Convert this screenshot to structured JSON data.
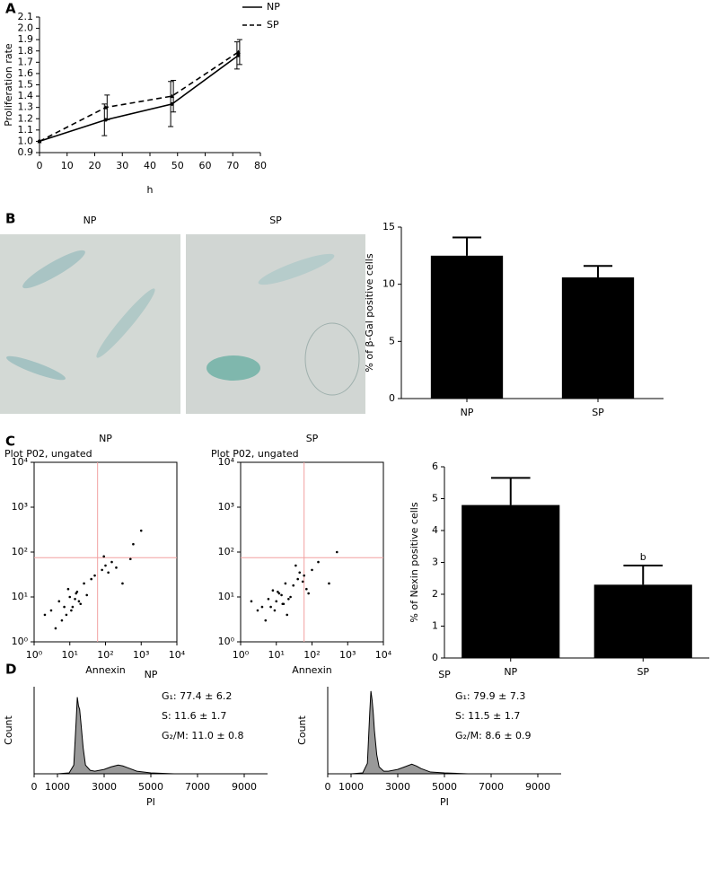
{
  "chart_data": [
    {
      "type": "line",
      "panel": "A",
      "ylabel": "Proliferation rate",
      "xlabel": "h",
      "legend": "top-right",
      "x": [
        0,
        24,
        48,
        72
      ],
      "series": [
        {
          "name": "NP",
          "color": "#000000",
          "line_style": "solid",
          "marker": "circle",
          "values": [
            1.0,
            1.19,
            1.33,
            1.76
          ],
          "errors": [
            null,
            0.14,
            0.2,
            0.12
          ]
        },
        {
          "name": "SP",
          "color": "#000000",
          "line_style": "dashed",
          "marker": "triangle",
          "values": [
            1.0,
            1.3,
            1.4,
            1.79
          ],
          "errors": [
            null,
            0.11,
            0.14,
            0.11
          ]
        }
      ],
      "xlim": [
        0,
        80
      ],
      "xticks": [
        0,
        10,
        20,
        30,
        40,
        50,
        60,
        70,
        80
      ],
      "ylim": [
        0.9,
        2.1
      ],
      "yticks": [
        0.9,
        {
          "value": 1.0,
          "label": "1.0"
        },
        1.1,
        1.2,
        1.3,
        1.4,
        1.5,
        1.6,
        1.7,
        1.8,
        1.9,
        {
          "value": 2.0,
          "label": "2.0"
        },
        2.1
      ]
    },
    {
      "type": "bar",
      "panel": "B",
      "image_labels": [
        "NP",
        "SP"
      ],
      "ylabel": "% of β-Gal positive cells",
      "categories": [
        "NP",
        "SP"
      ],
      "values": [
        12.5,
        10.6
      ],
      "errors": [
        1.6,
        1.0
      ],
      "color": "#000000",
      "ylim": [
        0,
        15
      ],
      "yticks": [
        0,
        5,
        10,
        15
      ]
    },
    {
      "type": "scatter",
      "panel": "C",
      "title": "NP",
      "subtitle": "Plot P02, ungated",
      "xlabel": "Annexin",
      "log_scale": true,
      "xlim": [
        1,
        10000
      ],
      "ylim": [
        1,
        10000
      ],
      "xticks": [
        {
          "value": 1,
          "label": "10⁰"
        },
        {
          "value": 10,
          "label": "10¹"
        },
        {
          "value": 100,
          "label": "10²"
        },
        {
          "value": 1000,
          "label": "10³"
        },
        {
          "value": 10000,
          "label": "10⁴"
        }
      ],
      "yticks": [
        {
          "value": 1,
          "label": "10⁰"
        },
        {
          "value": 10,
          "label": "10¹"
        },
        {
          "value": 100,
          "label": "10²"
        },
        {
          "value": 1000,
          "label": "10³"
        },
        {
          "value": 10000,
          "label": "10⁴"
        }
      ],
      "gate": {
        "x": 60,
        "y": 75
      },
      "gate_color": "#f2a0a0",
      "color": "#000000",
      "x": [
        3,
        5,
        8,
        10,
        12,
        15,
        20,
        6,
        9,
        14,
        25,
        30,
        4,
        7,
        11,
        18,
        40,
        50,
        80,
        100,
        120,
        150,
        200,
        90,
        300,
        600,
        1000,
        500,
        2,
        16
      ],
      "y": [
        5,
        8,
        4,
        10,
        6,
        12,
        7,
        3,
        15,
        9,
        20,
        11,
        2,
        6,
        5,
        8,
        25,
        30,
        40,
        50,
        35,
        60,
        45,
        80,
        20,
        150,
        300,
        70,
        4,
        13
      ]
    },
    {
      "type": "scatter",
      "title": "SP",
      "subtitle": "Plot P02, ungated",
      "xlabel": "Annexin",
      "log_scale": true,
      "xlim": [
        1,
        10000
      ],
      "ylim": [
        1,
        10000
      ],
      "xticks": [
        {
          "value": 1,
          "label": "10⁰"
        },
        {
          "value": 10,
          "label": "10¹"
        },
        {
          "value": 100,
          "label": "10²"
        },
        {
          "value": 1000,
          "label": "10³"
        },
        {
          "value": 10000,
          "label": "10⁴"
        }
      ],
      "yticks": [
        {
          "value": 1,
          "label": "10⁰"
        },
        {
          "value": 10,
          "label": "10¹"
        },
        {
          "value": 100,
          "label": "10²"
        },
        {
          "value": 1000,
          "label": "10³"
        },
        {
          "value": 10000,
          "label": "10⁴"
        }
      ],
      "gate": {
        "x": 60,
        "y": 75
      },
      "gate_color": "#f2a0a0",
      "color": "#000000",
      "x": [
        4,
        6,
        9,
        12,
        15,
        20,
        8,
        10,
        25,
        5,
        7,
        30,
        3,
        14,
        18,
        40,
        60,
        70,
        100,
        150,
        300,
        500,
        45,
        35,
        2,
        11,
        16,
        22,
        80,
        55
      ],
      "y": [
        6,
        9,
        5,
        12,
        7,
        4,
        14,
        8,
        10,
        3,
        6,
        18,
        5,
        11,
        20,
        25,
        30,
        15,
        40,
        60,
        20,
        100,
        35,
        50,
        8,
        13,
        7,
        9,
        12,
        22
      ]
    },
    {
      "type": "bar",
      "ylabel": "% of Nexin positive cells",
      "categories": [
        "NP",
        "SP"
      ],
      "values": [
        4.8,
        2.3
      ],
      "errors": [
        0.85,
        0.6
      ],
      "value_notes": [
        null,
        "b"
      ],
      "color": "#000000",
      "ylim": [
        0,
        6
      ],
      "yticks": [
        0,
        1,
        2,
        3,
        4,
        5,
        6
      ]
    },
    {
      "type": "area",
      "panel": "D",
      "title": "NP",
      "ylabel": "Count",
      "xlabel": "PI",
      "annotations": [
        "G₁: 77.4 ± 6.2",
        "S: 11.6 ± 1.7",
        "G₂/M: 11.0 ± 0.8"
      ],
      "xlim": [
        0,
        10000
      ],
      "ylim": [
        0,
        100
      ],
      "xticks": [
        0,
        1000,
        3000,
        5000,
        7000,
        9000
      ],
      "color": "#999999",
      "x": [
        0,
        1000,
        1500,
        1700,
        1800,
        1850,
        1900,
        1950,
        2000,
        2100,
        2200,
        2400,
        2600,
        3000,
        3300,
        3600,
        3800,
        4000,
        4400,
        5000,
        6000,
        10000
      ],
      "values": [
        0,
        0,
        1,
        10,
        60,
        88,
        78,
        74,
        60,
        30,
        10,
        4,
        3,
        5,
        8,
        10,
        9,
        7,
        3,
        1,
        0,
        0
      ]
    },
    {
      "type": "area",
      "title": "SP",
      "ylabel": "Count",
      "xlabel": "PI",
      "annotations": [
        "G₁: 79.9 ± 7.3",
        "S: 11.5 ± 1.7",
        "G₂/M: 8.6 ± 0.9"
      ],
      "xlim": [
        0,
        10000
      ],
      "ylim": [
        0,
        100
      ],
      "xticks": [
        0,
        1000,
        3000,
        5000,
        7000,
        9000
      ],
      "color": "#999999",
      "x": [
        0,
        1000,
        1500,
        1700,
        1800,
        1850,
        1900,
        1950,
        2000,
        2100,
        2200,
        2400,
        2600,
        3000,
        3300,
        3600,
        3800,
        4000,
        4400,
        5000,
        6000,
        10000
      ],
      "values": [
        0,
        0,
        1,
        12,
        70,
        95,
        85,
        70,
        50,
        22,
        8,
        3,
        3,
        5,
        8,
        11,
        9,
        6,
        2,
        1,
        0,
        0
      ]
    }
  ]
}
